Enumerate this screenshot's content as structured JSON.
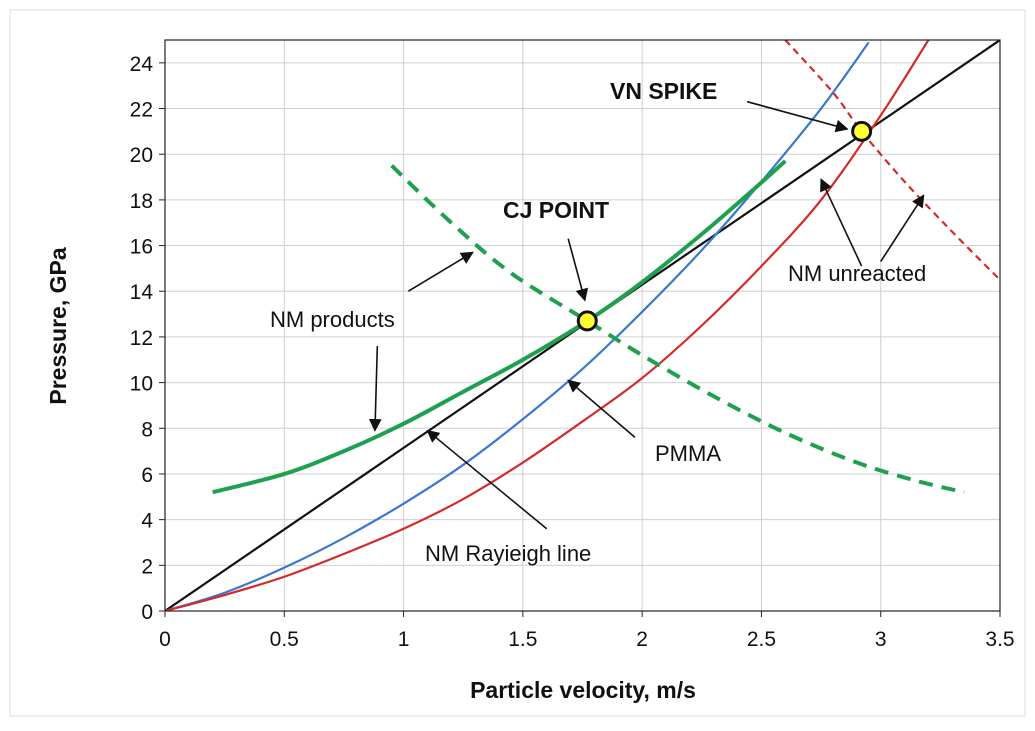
{
  "chart_data": {
    "type": "line",
    "title": "",
    "xlabel": "Particle velocity, m/s",
    "ylabel": "Pressure, GPa",
    "xlim": [
      0,
      3.5
    ],
    "ylim": [
      0,
      25
    ],
    "x_ticks": [
      0,
      0.5,
      1,
      1.5,
      2,
      2.5,
      3,
      3.5
    ],
    "x_tick_labels": [
      "0",
      "0.5",
      "1",
      "1.5",
      "2",
      "2.5",
      "3",
      "3.5"
    ],
    "y_ticks": [
      0,
      2,
      4,
      6,
      8,
      10,
      12,
      14,
      16,
      18,
      20,
      22,
      24
    ],
    "y_tick_labels": [
      "0",
      "2",
      "4",
      "6",
      "8",
      "10",
      "12",
      "14",
      "16",
      "18",
      "20",
      "22",
      "24"
    ],
    "grid": true,
    "colors": {
      "rayleigh": "#111111",
      "pmma": "#3a78d0",
      "nm_unreacted": "#d42a2a",
      "nm_products": "#1fa050",
      "point_fill": "#ffff33"
    },
    "series": [
      {
        "key": "nm_rayleigh",
        "style": "solid",
        "color": "#111111",
        "x": [
          0,
          3.5
        ],
        "y": [
          0,
          25
        ]
      },
      {
        "key": "pmma",
        "style": "solid",
        "color": "#3a78d0",
        "x": [
          0,
          0.25,
          0.5,
          0.75,
          1.0,
          1.25,
          1.5,
          1.75,
          2.0,
          2.25,
          2.5,
          2.75,
          2.95
        ],
        "y": [
          0,
          0.8,
          1.9,
          3.2,
          4.7,
          6.4,
          8.4,
          10.6,
          13.1,
          15.8,
          18.8,
          22.0,
          24.9
        ]
      },
      {
        "key": "nm_unreacted_hugoniot",
        "style": "solid",
        "color": "#d42a2a",
        "x": [
          0,
          0.25,
          0.5,
          0.75,
          1.0,
          1.25,
          1.5,
          1.75,
          2.0,
          2.25,
          2.5,
          2.75,
          3.0,
          3.2
        ],
        "y": [
          0,
          0.7,
          1.5,
          2.5,
          3.6,
          4.9,
          6.5,
          8.3,
          10.2,
          12.5,
          15.1,
          18.0,
          21.7,
          25.0
        ]
      },
      {
        "key": "nm_unreacted_reflected",
        "style": "dashed",
        "color": "#d42a2a",
        "x": [
          2.6,
          2.8,
          2.92,
          3.1,
          3.3,
          3.5
        ],
        "y": [
          25.0,
          22.7,
          21.0,
          18.8,
          16.6,
          14.5
        ]
      },
      {
        "key": "nm_products_hugoniot",
        "style": "solid",
        "color": "#1fa050",
        "x": [
          0.2,
          0.5,
          0.75,
          1.0,
          1.25,
          1.5,
          1.77,
          2.0,
          2.25,
          2.45,
          2.6
        ],
        "y": [
          5.2,
          6.0,
          7.0,
          8.2,
          9.6,
          11.0,
          12.7,
          14.4,
          16.5,
          18.3,
          19.7
        ]
      },
      {
        "key": "nm_products_reflected",
        "style": "dashed",
        "color": "#1fa050",
        "x": [
          0.95,
          1.2,
          1.45,
          1.77,
          2.0,
          2.3,
          2.6,
          2.9,
          3.15,
          3.35
        ],
        "y": [
          19.5,
          17.0,
          14.8,
          12.7,
          11.2,
          9.4,
          7.8,
          6.5,
          5.7,
          5.2
        ]
      }
    ],
    "points": [
      {
        "key": "cj_point",
        "label": "CJ POINT",
        "x": 1.77,
        "y": 12.7
      },
      {
        "key": "vn_spike",
        "label": "VN SPIKE",
        "x": 2.92,
        "y": 21.0
      }
    ],
    "annotations": [
      {
        "key": "nm_products",
        "text": "NM products",
        "bold": false
      },
      {
        "key": "nm_rayleigh_line",
        "text": "NM Rayieigh line",
        "bold": false
      },
      {
        "key": "pmma",
        "text": "PMMA",
        "bold": false
      },
      {
        "key": "nm_unreacted",
        "text": "NM unreacted",
        "bold": false
      }
    ],
    "arrows": [
      {
        "key": "cj-point-arrow",
        "from": [
          1.69,
          16.3
        ],
        "to": [
          1.76,
          13.6
        ]
      },
      {
        "key": "vn-spike-arrow",
        "from": [
          2.44,
          22.3
        ],
        "to": [
          2.86,
          21.1
        ]
      },
      {
        "key": "nm-products-arrow-1",
        "from": [
          1.02,
          14.0
        ],
        "to": [
          1.29,
          15.7
        ]
      },
      {
        "key": "nm-products-arrow-2",
        "from": [
          0.89,
          11.6
        ],
        "to": [
          0.88,
          7.9
        ]
      },
      {
        "key": "rayleigh-arrow",
        "from": [
          1.6,
          3.6
        ],
        "to": [
          1.1,
          7.9
        ]
      },
      {
        "key": "pmma-arrow",
        "from": [
          1.97,
          7.6
        ],
        "to": [
          1.69,
          10.1
        ]
      },
      {
        "key": "nm-unreacted-arrow-1",
        "from": [
          2.92,
          15.1
        ],
        "to": [
          2.75,
          18.9
        ]
      },
      {
        "key": "nm-unreacted-arrow-2",
        "from": [
          3.0,
          15.3
        ],
        "to": [
          3.18,
          18.2
        ]
      }
    ]
  }
}
